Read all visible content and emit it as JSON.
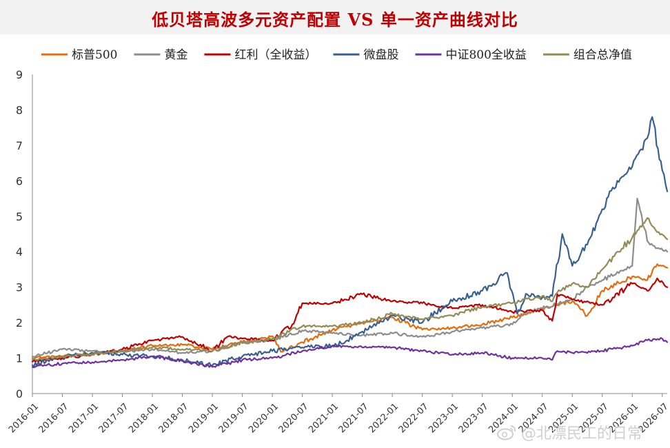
{
  "title": "低贝塔高波多元资产配置 VS 单一资产曲线对比",
  "watermark": "@北漂民工的日常",
  "chart_data": {
    "type": "line",
    "title": "低贝塔高波多元资产配置 VS 单一资产曲线对比",
    "xlabel": "",
    "ylabel": "",
    "ylim": [
      0,
      9
    ],
    "yticks": [
      "0",
      "1",
      "2",
      "3",
      "4",
      "5",
      "6",
      "7",
      "8",
      "9"
    ],
    "xlim": [
      "2016-01",
      "2026-08"
    ],
    "categories": [
      "2016-01",
      "2016-07",
      "2017-01",
      "2017-07",
      "2018-01",
      "2018-07",
      "2019-01",
      "2019-07",
      "2020-01",
      "2020-07",
      "2021-01",
      "2021-07",
      "2022-01",
      "2022-07",
      "2023-01",
      "2023-07",
      "2024-01",
      "2024-07",
      "2025-01",
      "2025-07",
      "2026-01",
      "2026-07"
    ],
    "grid": false,
    "legend_position": "top",
    "series": [
      {
        "name": "标普500",
        "color": "#e46c0a",
        "x": [
          "2016-01",
          "2016-07",
          "2017-01",
          "2017-07",
          "2018-01",
          "2018-07",
          "2019-01",
          "2019-07",
          "2020-01",
          "2020-03",
          "2020-07",
          "2021-01",
          "2021-07",
          "2022-01",
          "2022-07",
          "2023-01",
          "2023-07",
          "2024-01",
          "2024-04",
          "2024-07",
          "2025-01",
          "2025-04",
          "2025-07",
          "2026-01",
          "2026-04",
          "2026-06",
          "2026-08"
        ],
        "values": [
          1.0,
          1.05,
          1.12,
          1.2,
          1.35,
          1.38,
          1.25,
          1.45,
          1.62,
          1.18,
          1.45,
          1.8,
          2.0,
          2.15,
          1.8,
          1.85,
          1.95,
          2.15,
          2.25,
          2.4,
          2.6,
          2.2,
          2.9,
          3.3,
          3.2,
          3.65,
          3.55
        ]
      },
      {
        "name": "黄金",
        "color": "#8c8c8c",
        "x": [
          "2016-01",
          "2016-07",
          "2017-01",
          "2017-07",
          "2018-01",
          "2018-07",
          "2019-01",
          "2019-07",
          "2020-01",
          "2020-07",
          "2021-01",
          "2021-07",
          "2022-01",
          "2022-07",
          "2023-01",
          "2023-07",
          "2024-01",
          "2024-04",
          "2024-07",
          "2025-01",
          "2025-04",
          "2025-07",
          "2026-01",
          "2026-02",
          "2026-04",
          "2026-06",
          "2026-08"
        ],
        "values": [
          1.05,
          1.25,
          1.2,
          1.18,
          1.25,
          1.15,
          1.2,
          1.45,
          1.5,
          1.78,
          1.7,
          1.65,
          1.7,
          1.6,
          1.75,
          1.85,
          1.95,
          2.3,
          2.4,
          2.65,
          3.0,
          3.2,
          3.6,
          5.5,
          4.3,
          4.1,
          4.0
        ]
      },
      {
        "name": "红利（全收益）",
        "color": "#c00000",
        "x": [
          "2016-01",
          "2016-07",
          "2017-01",
          "2017-07",
          "2018-01",
          "2018-07",
          "2019-01",
          "2019-04",
          "2019-07",
          "2020-01",
          "2020-05",
          "2020-07",
          "2021-01",
          "2021-07",
          "2022-01",
          "2022-07",
          "2023-01",
          "2023-07",
          "2024-01",
          "2024-07",
          "2024-09",
          "2024-10",
          "2025-01",
          "2025-07",
          "2026-01",
          "2026-04",
          "2026-06",
          "2026-08"
        ],
        "values": [
          0.9,
          1.0,
          1.1,
          1.25,
          1.5,
          1.6,
          1.2,
          1.6,
          1.55,
          1.5,
          1.95,
          2.55,
          2.55,
          2.8,
          2.6,
          2.55,
          2.4,
          2.5,
          2.3,
          2.35,
          2.05,
          2.8,
          2.65,
          2.5,
          3.1,
          2.9,
          3.25,
          3.0
        ]
      },
      {
        "name": "微盘股",
        "color": "#376092",
        "x": [
          "2016-01",
          "2016-07",
          "2017-01",
          "2017-07",
          "2018-01",
          "2018-07",
          "2019-01",
          "2019-07",
          "2020-01",
          "2020-07",
          "2021-01",
          "2021-04",
          "2021-07",
          "2022-01",
          "2022-07",
          "2023-01",
          "2023-07",
          "2023-12",
          "2024-02",
          "2024-04",
          "2024-07",
          "2024-09",
          "2024-11",
          "2025-01",
          "2025-04",
          "2025-07",
          "2025-10",
          "2026-01",
          "2026-04",
          "2026-05",
          "2026-07",
          "2026-08"
        ],
        "values": [
          0.8,
          1.05,
          1.15,
          1.1,
          1.05,
          0.95,
          0.8,
          1.05,
          1.2,
          1.3,
          1.35,
          1.5,
          1.75,
          2.2,
          2.0,
          2.6,
          2.9,
          3.4,
          2.25,
          2.8,
          2.7,
          2.75,
          4.5,
          3.6,
          4.2,
          5.2,
          6.0,
          6.4,
          7.2,
          7.8,
          6.3,
          5.7
        ]
      },
      {
        "name": "中证800全收益",
        "color": "#7030a0",
        "x": [
          "2016-01",
          "2016-07",
          "2017-01",
          "2017-07",
          "2018-01",
          "2018-07",
          "2019-01",
          "2019-07",
          "2020-01",
          "2020-07",
          "2021-01",
          "2021-07",
          "2022-01",
          "2022-07",
          "2023-01",
          "2023-07",
          "2024-01",
          "2024-07",
          "2024-09",
          "2024-10",
          "2025-01",
          "2025-07",
          "2026-01",
          "2026-04",
          "2026-07",
          "2026-08"
        ],
        "values": [
          0.75,
          0.85,
          0.88,
          0.95,
          1.05,
          0.92,
          0.75,
          0.95,
          1.0,
          1.2,
          1.35,
          1.3,
          1.3,
          1.2,
          1.1,
          1.15,
          1.0,
          1.0,
          0.95,
          1.2,
          1.15,
          1.2,
          1.35,
          1.5,
          1.55,
          1.45
        ]
      },
      {
        "name": "组合总净值",
        "color": "#948a54",
        "x": [
          "2016-01",
          "2016-07",
          "2017-01",
          "2017-07",
          "2018-01",
          "2018-07",
          "2019-01",
          "2019-07",
          "2020-01",
          "2020-07",
          "2021-01",
          "2021-07",
          "2022-01",
          "2022-07",
          "2023-01",
          "2023-07",
          "2024-01",
          "2024-07",
          "2024-09",
          "2024-10",
          "2025-01",
          "2025-04",
          "2025-07",
          "2026-01",
          "2026-02",
          "2026-04",
          "2026-06",
          "2026-08"
        ],
        "values": [
          0.95,
          1.05,
          1.12,
          1.2,
          1.3,
          1.25,
          1.2,
          1.42,
          1.55,
          1.9,
          1.9,
          2.0,
          2.25,
          2.1,
          2.2,
          2.45,
          2.55,
          2.75,
          2.6,
          2.85,
          3.1,
          3.0,
          3.5,
          4.4,
          4.6,
          4.95,
          4.55,
          4.35
        ]
      }
    ]
  }
}
